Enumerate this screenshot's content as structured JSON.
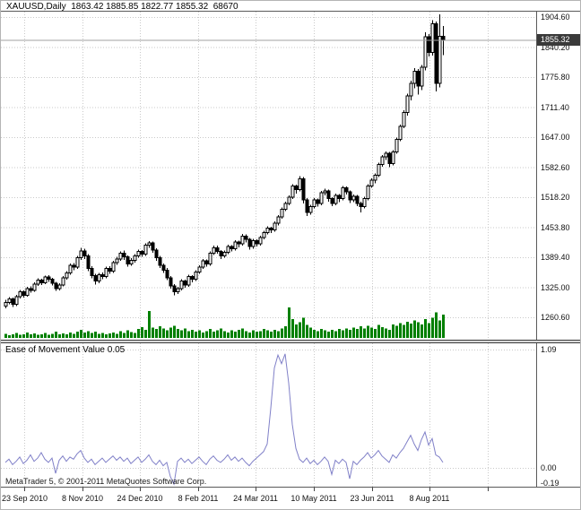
{
  "header": {
    "info": "XAUUSD,Daily  1863.42 1885.85 1822.77 1855.32  68670"
  },
  "indicator": {
    "name": "Ease of Movement Value",
    "value": "0.05"
  },
  "footer": {
    "copyright": "MetaTrader 5, © 2001-2011 MetaQuotes Software Corp."
  },
  "price_axis": {
    "labels": [
      "1904.60",
      "1840.20",
      "1775.80",
      "1711.40",
      "1647.00",
      "1582.60",
      "1518.20",
      "1453.80",
      "1389.40",
      "1325.00",
      "1260.60"
    ],
    "current_price_badge": "1855.32"
  },
  "indicator_axis": {
    "labels": [
      "1.09",
      "0.00",
      "-0.19"
    ],
    "values": [
      1.09,
      0.0,
      -0.19
    ]
  },
  "time_axis": {
    "labels": [
      "23 Sep 2010",
      "8 Nov 2010",
      "24 Dec 2010",
      "8 Feb 2011",
      "24 Mar 2011",
      "10 May 2011",
      "23 Jun 2011",
      "8 Aug 2011"
    ]
  },
  "colors": {
    "volume": "#008000",
    "bull": "#ffffff",
    "bear": "#000000",
    "candle_outline": "#000000",
    "indicator_line": "#8080c8",
    "grid": "#c9c9c9",
    "badge_bg": "#3a3a3a",
    "badge_text": "#ffffff",
    "price_line": "#a0a0a0"
  },
  "chart_data": [
    {
      "type": "candlestick",
      "symbol": "XAUUSD",
      "timeframe": "Daily",
      "title": "XAUUSD,Daily",
      "last_bar": {
        "open": 1863.42,
        "high": 1885.85,
        "low": 1822.77,
        "close": 1855.32,
        "volume": 68670
      },
      "current_price": 1855.32,
      "y_ticks": [
        1904.6,
        1840.2,
        1775.8,
        1711.4,
        1647.0,
        1582.6,
        1518.2,
        1453.8,
        1389.4,
        1325.0,
        1260.6
      ],
      "ylim": [
        1248,
        1915
      ],
      "x_tick_labels": [
        "23 Sep 2010",
        "8 Nov 2010",
        "24 Dec 2010",
        "8 Feb 2011",
        "24 Mar 2011",
        "10 May 2011",
        "23 Jun 2011",
        "8 Aug 2011"
      ],
      "grid": true,
      "ohlc": [
        [
          1285,
          1298,
          1280,
          1292
        ],
        [
          1292,
          1304,
          1288,
          1300
        ],
        [
          1300,
          1303,
          1283,
          1288
        ],
        [
          1288,
          1309,
          1285,
          1305
        ],
        [
          1305,
          1319,
          1301,
          1315
        ],
        [
          1315,
          1318,
          1303,
          1308
        ],
        [
          1308,
          1326,
          1305,
          1322
        ],
        [
          1322,
          1327,
          1313,
          1318
        ],
        [
          1318,
          1336,
          1315,
          1332
        ],
        [
          1332,
          1344,
          1328,
          1340
        ],
        [
          1340,
          1343,
          1330,
          1335
        ],
        [
          1335,
          1350,
          1332,
          1347
        ],
        [
          1347,
          1351,
          1337,
          1342
        ],
        [
          1342,
          1345,
          1329,
          1334
        ],
        [
          1334,
          1337,
          1317,
          1322
        ],
        [
          1322,
          1334,
          1318,
          1330
        ],
        [
          1330,
          1349,
          1327,
          1345
        ],
        [
          1345,
          1360,
          1341,
          1356
        ],
        [
          1356,
          1376,
          1352,
          1372
        ],
        [
          1372,
          1377,
          1362,
          1368
        ],
        [
          1368,
          1392,
          1364,
          1388
        ],
        [
          1388,
          1410,
          1384,
          1403
        ],
        [
          1403,
          1408,
          1386,
          1392
        ],
        [
          1392,
          1396,
          1360,
          1365
        ],
        [
          1365,
          1370,
          1344,
          1350
        ],
        [
          1350,
          1354,
          1331,
          1338
        ],
        [
          1338,
          1356,
          1334,
          1352
        ],
        [
          1352,
          1357,
          1342,
          1348
        ],
        [
          1348,
          1369,
          1344,
          1365
        ],
        [
          1365,
          1370,
          1354,
          1360
        ],
        [
          1360,
          1382,
          1356,
          1378
        ],
        [
          1378,
          1390,
          1373,
          1386
        ],
        [
          1386,
          1402,
          1382,
          1398
        ],
        [
          1398,
          1404,
          1384,
          1390
        ],
        [
          1390,
          1393,
          1369,
          1375
        ],
        [
          1375,
          1387,
          1371,
          1383
        ],
        [
          1383,
          1396,
          1378,
          1392
        ],
        [
          1392,
          1406,
          1388,
          1402
        ],
        [
          1402,
          1405,
          1390,
          1396
        ],
        [
          1396,
          1419,
          1392,
          1415
        ],
        [
          1415,
          1424,
          1410,
          1420
        ],
        [
          1420,
          1423,
          1399,
          1405
        ],
        [
          1405,
          1409,
          1382,
          1388
        ],
        [
          1388,
          1392,
          1366,
          1372
        ],
        [
          1372,
          1376,
          1356,
          1362
        ],
        [
          1362,
          1366,
          1340,
          1345
        ],
        [
          1345,
          1349,
          1322,
          1328
        ],
        [
          1328,
          1332,
          1308,
          1315
        ],
        [
          1315,
          1326,
          1311,
          1322
        ],
        [
          1322,
          1342,
          1318,
          1338
        ],
        [
          1338,
          1341,
          1324,
          1330
        ],
        [
          1330,
          1352,
          1326,
          1348
        ],
        [
          1348,
          1351,
          1336,
          1342
        ],
        [
          1342,
          1362,
          1338,
          1358
        ],
        [
          1358,
          1372,
          1354,
          1368
        ],
        [
          1368,
          1386,
          1364,
          1382
        ],
        [
          1382,
          1385,
          1369,
          1375
        ],
        [
          1375,
          1402,
          1371,
          1398
        ],
        [
          1398,
          1414,
          1394,
          1410
        ],
        [
          1410,
          1414,
          1397,
          1402
        ],
        [
          1402,
          1405,
          1386,
          1392
        ],
        [
          1392,
          1404,
          1388,
          1400
        ],
        [
          1400,
          1416,
          1396,
          1412
        ],
        [
          1412,
          1415,
          1402,
          1408
        ],
        [
          1408,
          1426,
          1404,
          1422
        ],
        [
          1422,
          1425,
          1411,
          1418
        ],
        [
          1418,
          1439,
          1414,
          1435
        ],
        [
          1435,
          1438,
          1421,
          1428
        ],
        [
          1428,
          1431,
          1406,
          1412
        ],
        [
          1412,
          1429,
          1408,
          1425
        ],
        [
          1425,
          1428,
          1412,
          1418
        ],
        [
          1418,
          1436,
          1414,
          1432
        ],
        [
          1432,
          1446,
          1428,
          1442
        ],
        [
          1442,
          1456,
          1438,
          1452
        ],
        [
          1452,
          1455,
          1441,
          1448
        ],
        [
          1448,
          1466,
          1444,
          1462
        ],
        [
          1462,
          1480,
          1458,
          1476
        ],
        [
          1476,
          1496,
          1472,
          1492
        ],
        [
          1492,
          1509,
          1488,
          1505
        ],
        [
          1505,
          1522,
          1501,
          1518
        ],
        [
          1518,
          1546,
          1514,
          1542
        ],
        [
          1542,
          1545,
          1526,
          1535
        ],
        [
          1535,
          1563,
          1531,
          1558
        ],
        [
          1558,
          1561,
          1505,
          1512
        ],
        [
          1512,
          1516,
          1478,
          1486
        ],
        [
          1486,
          1502,
          1481,
          1498
        ],
        [
          1498,
          1516,
          1494,
          1512
        ],
        [
          1512,
          1515,
          1498,
          1505
        ],
        [
          1505,
          1532,
          1501,
          1528
        ],
        [
          1528,
          1536,
          1522,
          1532
        ],
        [
          1532,
          1535,
          1509,
          1515
        ],
        [
          1515,
          1518,
          1499,
          1505
        ],
        [
          1505,
          1526,
          1501,
          1522
        ],
        [
          1522,
          1525,
          1508,
          1515
        ],
        [
          1515,
          1542,
          1511,
          1538
        ],
        [
          1538,
          1541,
          1524,
          1530
        ],
        [
          1530,
          1533,
          1506,
          1512
        ],
        [
          1512,
          1524,
          1508,
          1520
        ],
        [
          1520,
          1523,
          1499,
          1505
        ],
        [
          1505,
          1509,
          1486,
          1498
        ],
        [
          1498,
          1519,
          1494,
          1515
        ],
        [
          1515,
          1546,
          1511,
          1542
        ],
        [
          1542,
          1559,
          1538,
          1555
        ],
        [
          1555,
          1569,
          1548,
          1565
        ],
        [
          1565,
          1592,
          1561,
          1588
        ],
        [
          1588,
          1609,
          1584,
          1605
        ],
        [
          1605,
          1616,
          1598,
          1612
        ],
        [
          1612,
          1615,
          1583,
          1590
        ],
        [
          1590,
          1619,
          1586,
          1615
        ],
        [
          1615,
          1646,
          1611,
          1642
        ],
        [
          1642,
          1674,
          1638,
          1670
        ],
        [
          1670,
          1705,
          1666,
          1700
        ],
        [
          1700,
          1740,
          1693,
          1735
        ],
        [
          1735,
          1768,
          1726,
          1762
        ],
        [
          1762,
          1795,
          1752,
          1788
        ],
        [
          1788,
          1793,
          1738,
          1757
        ],
        [
          1757,
          1802,
          1748,
          1797
        ],
        [
          1797,
          1872,
          1790,
          1862
        ],
        [
          1862,
          1868,
          1820,
          1829
        ],
        [
          1829,
          1898,
          1822,
          1890
        ],
        [
          1890,
          1895,
          1745,
          1762
        ],
        [
          1762,
          1910,
          1754,
          1863
        ],
        [
          1863.42,
          1885.85,
          1822.77,
          1855.32
        ]
      ],
      "volume_k": [
        12,
        8,
        10,
        14,
        9,
        11,
        16,
        10,
        13,
        9,
        11,
        15,
        9,
        12,
        18,
        10,
        13,
        11,
        16,
        12,
        19,
        24,
        16,
        20,
        14,
        18,
        12,
        15,
        11,
        13,
        16,
        12,
        20,
        15,
        22,
        17,
        14,
        26,
        32,
        24,
        80,
        30,
        26,
        34,
        28,
        22,
        30,
        36,
        26,
        22,
        28,
        20,
        24,
        18,
        22,
        16,
        20,
        26,
        18,
        22,
        28,
        20,
        16,
        22,
        18,
        24,
        28,
        20,
        16,
        22,
        18,
        20,
        26,
        22,
        18,
        24,
        20,
        28,
        34,
        90,
        55,
        40,
        46,
        60,
        38,
        30,
        24,
        20,
        26,
        22,
        18,
        24,
        20,
        26,
        22,
        28,
        24,
        30,
        26,
        34,
        28,
        36,
        30,
        26,
        38,
        32,
        28,
        24,
        40,
        36,
        44,
        38,
        48,
        42,
        52,
        46,
        40,
        56,
        44,
        60,
        75,
        52,
        68.67
      ]
    },
    {
      "type": "line",
      "title": "Ease of Movement Value",
      "current_value": 0.05,
      "y_ticks": [
        1.09,
        0.0,
        -0.19
      ],
      "ylim": [
        -0.19,
        1.09
      ],
      "grid": true,
      "values": [
        0.05,
        0.08,
        0.03,
        0.06,
        0.1,
        0.04,
        0.07,
        0.12,
        0.06,
        0.09,
        0.14,
        0.08,
        0.05,
        0.09,
        -0.05,
        0.07,
        0.11,
        0.06,
        0.1,
        0.08,
        0.13,
        0.16,
        0.09,
        0.05,
        0.08,
        0.03,
        0.06,
        0.09,
        0.05,
        0.08,
        0.11,
        0.07,
        0.1,
        0.06,
        0.09,
        0.04,
        0.07,
        0.1,
        0.05,
        0.08,
        0.12,
        0.06,
        0.03,
        0.07,
        0.02,
        0.05,
        -0.08,
        -0.15,
        0.06,
        0.09,
        0.05,
        0.08,
        0.04,
        0.07,
        0.1,
        0.06,
        0.03,
        0.08,
        0.11,
        0.07,
        0.05,
        0.08,
        0.12,
        0.07,
        0.1,
        0.06,
        0.09,
        0.05,
        0.02,
        0.06,
        0.09,
        0.12,
        0.15,
        0.22,
        0.55,
        0.92,
        1.04,
        0.96,
        1.05,
        0.78,
        0.4,
        0.18,
        0.08,
        0.05,
        0.09,
        0.04,
        0.07,
        0.03,
        0.06,
        0.1,
        0.06,
        -0.06,
        0.07,
        0.04,
        0.08,
        0.05,
        -0.1,
        0.06,
        0.03,
        0.07,
        0.1,
        0.14,
        0.09,
        0.12,
        0.16,
        0.11,
        0.08,
        0.05,
        0.12,
        0.09,
        0.14,
        0.18,
        0.24,
        0.3,
        0.22,
        0.16,
        0.26,
        0.33,
        0.21,
        0.27,
        0.12,
        0.1,
        0.05
      ]
    }
  ]
}
